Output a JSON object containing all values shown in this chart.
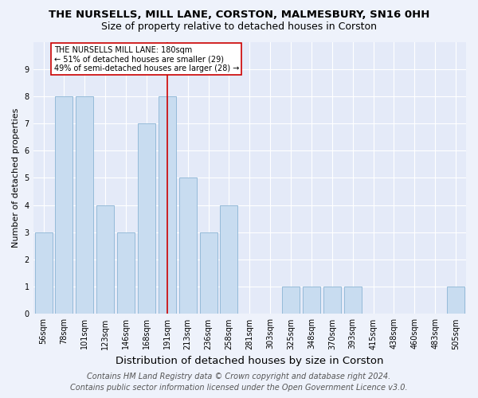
{
  "title": "THE NURSELLS, MILL LANE, CORSTON, MALMESBURY, SN16 0HH",
  "subtitle": "Size of property relative to detached houses in Corston",
  "xlabel": "Distribution of detached houses by size in Corston",
  "ylabel": "Number of detached properties",
  "categories": [
    "56sqm",
    "78sqm",
    "101sqm",
    "123sqm",
    "146sqm",
    "168sqm",
    "191sqm",
    "213sqm",
    "236sqm",
    "258sqm",
    "281sqm",
    "303sqm",
    "325sqm",
    "348sqm",
    "370sqm",
    "393sqm",
    "415sqm",
    "438sqm",
    "460sqm",
    "483sqm",
    "505sqm"
  ],
  "values": [
    3,
    8,
    8,
    4,
    3,
    7,
    8,
    5,
    3,
    4,
    0,
    0,
    1,
    1,
    1,
    1,
    0,
    0,
    0,
    0,
    1
  ],
  "bar_color": "#c8dcf0",
  "bar_edge_color": "#8ab4d4",
  "vline_x_index": 6,
  "vline_color": "#cc0000",
  "ylim": [
    0,
    10
  ],
  "yticks": [
    0,
    1,
    2,
    3,
    4,
    5,
    6,
    7,
    8,
    9,
    10
  ],
  "annotation_text": "THE NURSELLS MILL LANE: 180sqm\n← 51% of detached houses are smaller (29)\n49% of semi-detached houses are larger (28) →",
  "annotation_box_color": "#ffffff",
  "annotation_box_edge": "#cc0000",
  "footer_line1": "Contains HM Land Registry data © Crown copyright and database right 2024.",
  "footer_line2": "Contains public sector information licensed under the Open Government Licence v3.0.",
  "title_fontsize": 9.5,
  "subtitle_fontsize": 9,
  "xlabel_fontsize": 9.5,
  "ylabel_fontsize": 8,
  "tick_fontsize": 7,
  "footer_fontsize": 7,
  "background_color": "#eef2fb",
  "plot_bg_color": "#e4eaf8"
}
